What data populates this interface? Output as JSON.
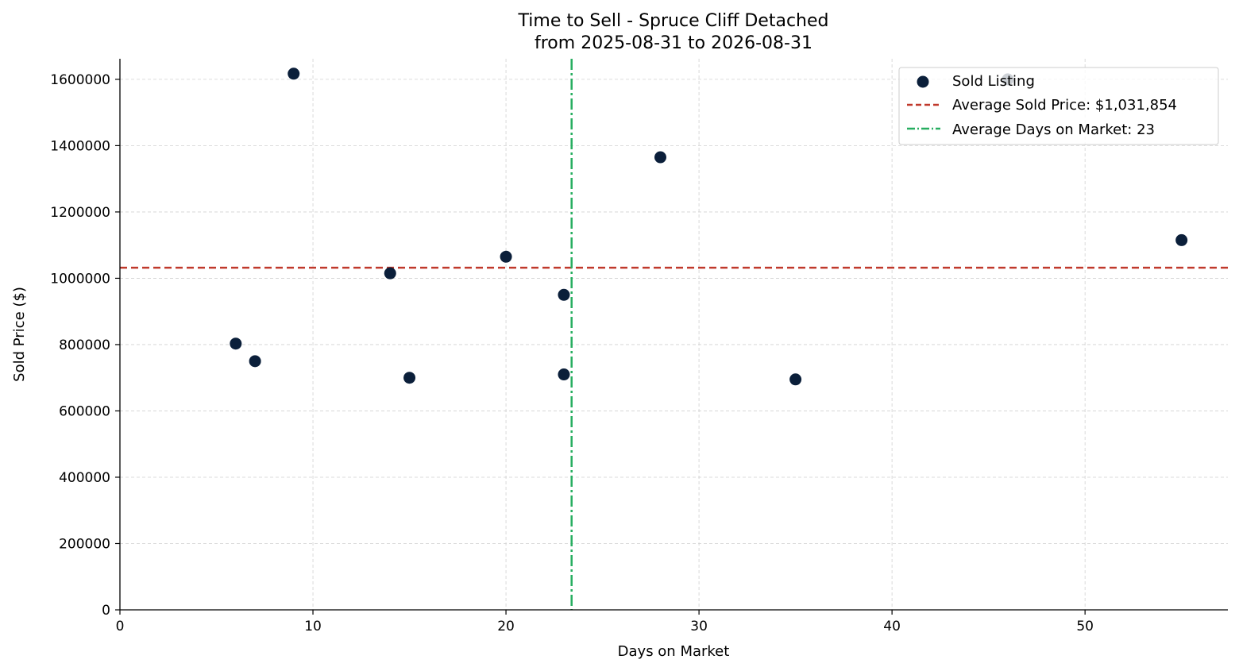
{
  "chart_data": {
    "type": "scatter",
    "title_line1": "Time to Sell - Spruce Cliff Detached",
    "title_line2": "from 2025-08-31 to 2026-08-31",
    "xlabel": "Days on Market",
    "ylabel": "Sold Price ($)",
    "xlim": [
      0,
      57.4
    ],
    "ylim": [
      0,
      1662000
    ],
    "x_ticks": [
      0,
      10,
      20,
      30,
      40,
      50
    ],
    "y_ticks": [
      0,
      200000,
      400000,
      600000,
      800000,
      1000000,
      1200000,
      1400000,
      1600000
    ],
    "grid": true,
    "legend_position": "top-right",
    "series": [
      {
        "name": "Sold Listing",
        "color": "#0b1f3a",
        "points": [
          {
            "x": 6,
            "y": 803000
          },
          {
            "x": 7,
            "y": 750000
          },
          {
            "x": 9,
            "y": 1617000
          },
          {
            "x": 14,
            "y": 1015000
          },
          {
            "x": 15,
            "y": 700000
          },
          {
            "x": 20,
            "y": 1065000
          },
          {
            "x": 23,
            "y": 950000
          },
          {
            "x": 23,
            "y": 710000
          },
          {
            "x": 28,
            "y": 1365000
          },
          {
            "x": 35,
            "y": 695000
          },
          {
            "x": 46,
            "y": 1600000
          },
          {
            "x": 55,
            "y": 1115000
          }
        ]
      }
    ],
    "avg_price": {
      "label": "Average Sold Price: $1,031,854",
      "value": 1031854,
      "color": "#c0392b"
    },
    "avg_days": {
      "label": "Average Days on Market: 23",
      "value": 23.4,
      "color": "#27ae60"
    }
  }
}
